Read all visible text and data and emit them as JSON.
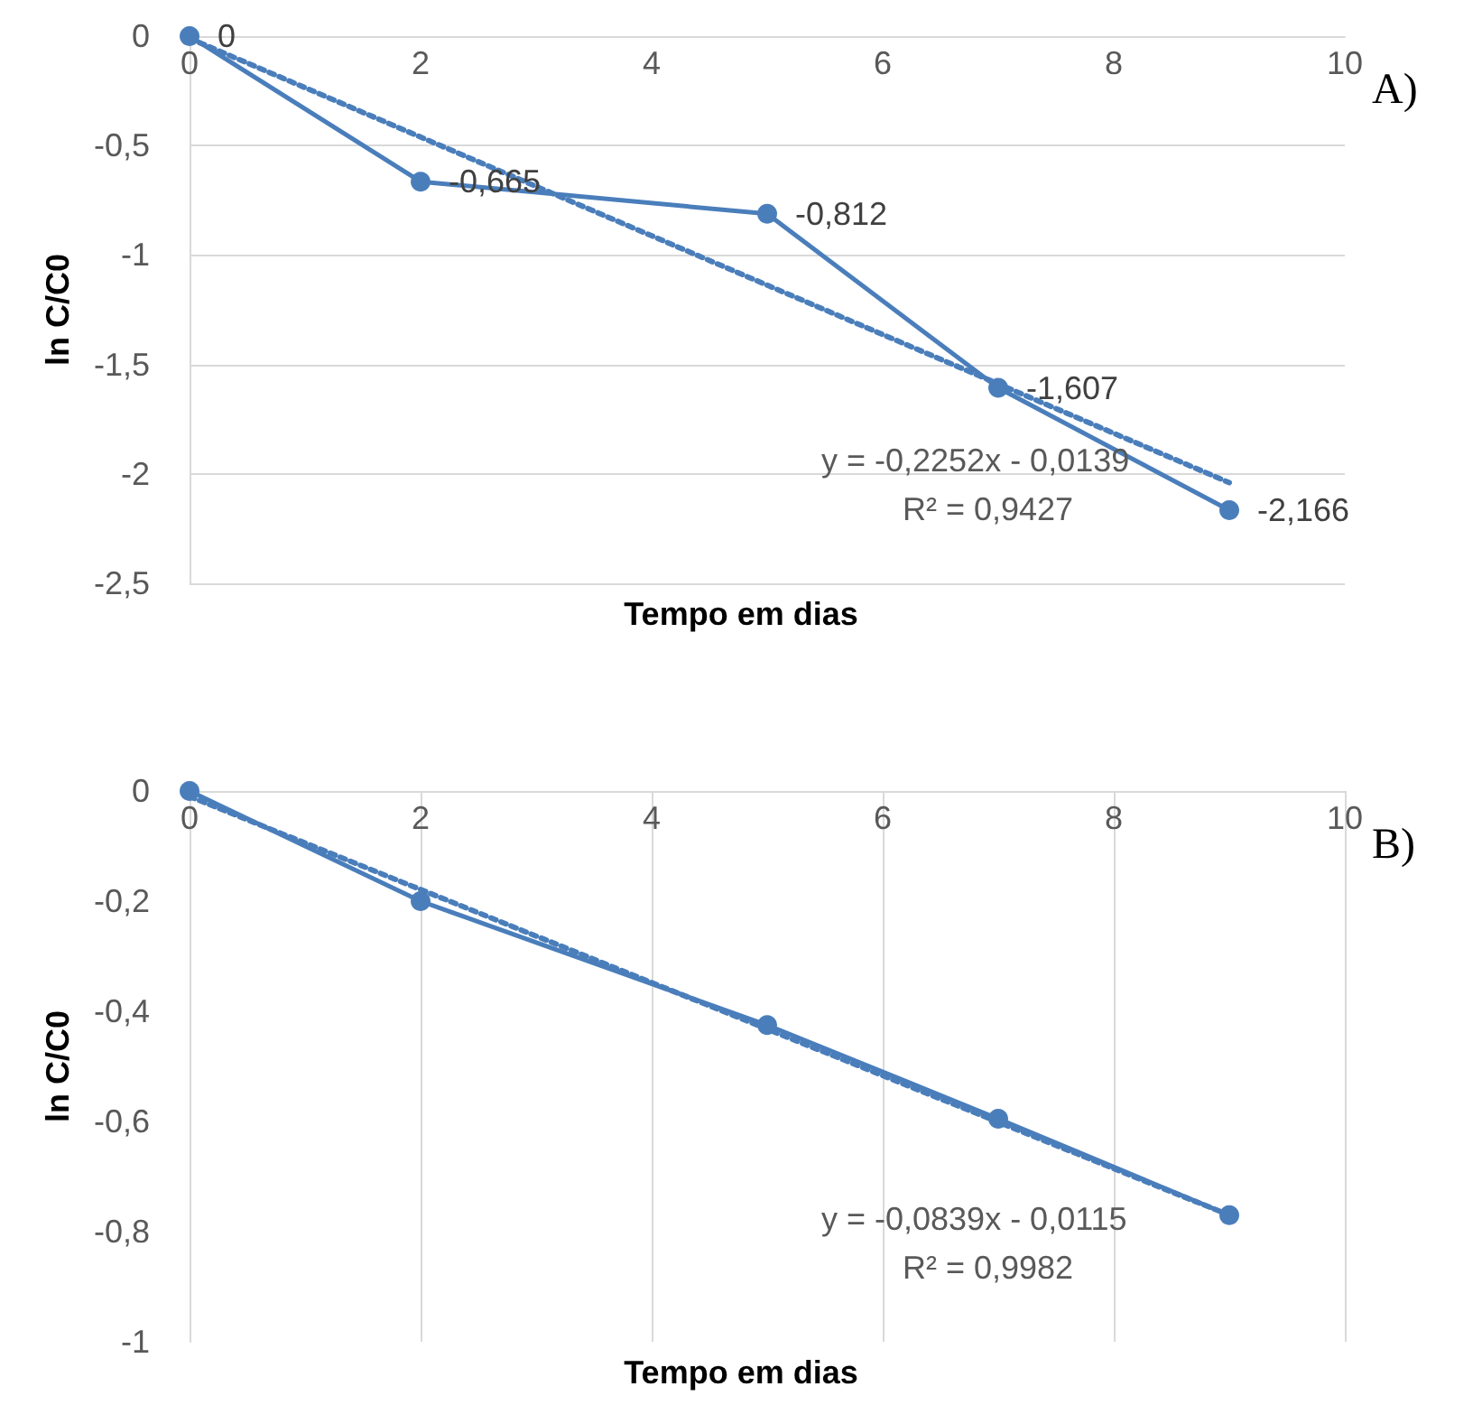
{
  "chart_data": [
    {
      "type": "line",
      "xlabel": "Tempo em dias",
      "ylabel": "ln C/C0",
      "xlim": [
        0,
        10
      ],
      "xticks": [
        0,
        2,
        4,
        6,
        8,
        10
      ],
      "ylim": [
        -2.5,
        0
      ],
      "yticks": [
        {
          "value": -2.5,
          "label": "-2,5"
        },
        {
          "value": -2,
          "label": "-2"
        },
        {
          "value": -1.5,
          "label": "-1,5"
        },
        {
          "value": -1,
          "label": "-1"
        },
        {
          "value": -0.5,
          "label": "-0,5"
        },
        {
          "value": 0,
          "label": "0"
        }
      ],
      "grid": "y",
      "marker": "circle",
      "line_style": "solid",
      "series": [
        {
          "color": "#4a7ebb",
          "x": [
            0,
            2,
            5,
            7,
            9
          ],
          "values": [
            0,
            -0.665,
            -0.812,
            -1.607,
            -2.166
          ],
          "value_labels": [
            "0",
            "-0,665",
            "-0,812",
            "-1,607",
            "-2,166"
          ]
        },
        {
          "type": "line",
          "color": "#4a7ebb",
          "x": [
            0,
            9
          ],
          "values": [
            -0.01,
            -2.04
          ],
          "marker": "none",
          "line_style": "dotted"
        }
      ],
      "annotations": [
        "A)",
        "y = -0,2252x - 0,0139",
        "R² = 0,9427"
      ]
    },
    {
      "type": "line",
      "xlabel": "Tempo em dias",
      "ylabel": "ln C/C0",
      "xlim": [
        0,
        10
      ],
      "xticks": [
        0,
        2,
        4,
        6,
        8,
        10
      ],
      "ylim": [
        -1,
        0
      ],
      "yticks": [
        {
          "value": -1,
          "label": "-1"
        },
        {
          "value": -0.8,
          "label": "-0,8"
        },
        {
          "value": -0.6,
          "label": "-0,6"
        },
        {
          "value": -0.4,
          "label": "-0,4"
        },
        {
          "value": -0.2,
          "label": "-0,2"
        },
        {
          "value": 0,
          "label": "0"
        }
      ],
      "grid": "x",
      "marker": "circle",
      "line_style": "solid",
      "series": [
        {
          "color": "#4a7ebb",
          "x": [
            0,
            2,
            5,
            7,
            9
          ],
          "values": [
            0,
            -0.2,
            -0.425,
            -0.595,
            -0.77
          ]
        },
        {
          "type": "line",
          "color": "#4a7ebb",
          "x": [
            0,
            9
          ],
          "values": [
            -0.01,
            -0.77
          ],
          "marker": "none",
          "line_style": "dotted"
        }
      ],
      "annotations": [
        "B)",
        "y = -0,0839x - 0,0115",
        "R² = 0,9982"
      ]
    }
  ]
}
